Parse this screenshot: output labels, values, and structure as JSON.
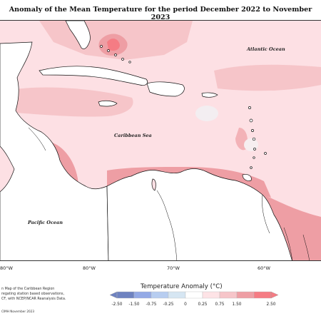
{
  "title": "Anomaly of the Mean Temperature for the period December 2022 to November 2023",
  "labels": {
    "atlantic": "Atlantic Ocean",
    "caribbean": "Caribbean Sea",
    "pacific": "Pacific Ocean"
  },
  "longitude_labels": [
    "80°W",
    "80°W",
    "70°W",
    "60°W"
  ],
  "notes": {
    "line1": "n Map of the Caribbean Region",
    "line2": "regating station based observations,",
    "line3": "CF, with NCEP/NCAR Reanalysis Data.",
    "credit": "CIMH November 2023"
  },
  "legend": {
    "title": "Temperature Anomaly (°C)",
    "ticks": [
      "-2.50",
      "-1.50",
      "-0.75",
      "-0.25",
      "0",
      "0.25",
      "0.75",
      "1.50",
      "2.50"
    ],
    "colors": [
      "#6e82c0",
      "#93a9e6",
      "#b7cdf0",
      "#d6e6f2",
      "#ffffff",
      "#fde3e6",
      "#f6c5c9",
      "#ee9ea4",
      "#f57c84"
    ]
  },
  "colors": {
    "land": "#ffffff",
    "ocean_base": "#fde0e4",
    "anomaly_medium": "#f6c5c9",
    "anomaly_high": "#ee9ea4",
    "anomaly_max": "#f57c84"
  }
}
